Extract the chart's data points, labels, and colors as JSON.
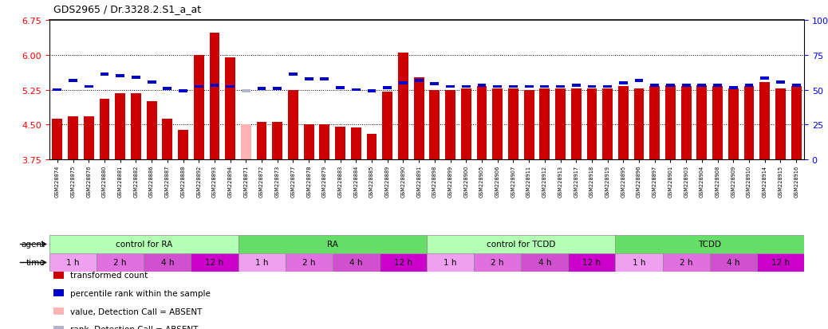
{
  "title": "GDS2965 / Dr.3328.2.S1_a_at",
  "gsm_ids": [
    "GSM228874",
    "GSM228875",
    "GSM228876",
    "GSM228880",
    "GSM228881",
    "GSM228882",
    "GSM228886",
    "GSM228887",
    "GSM228888",
    "GSM228892",
    "GSM228893",
    "GSM228894",
    "GSM228871",
    "GSM228872",
    "GSM228873",
    "GSM228877",
    "GSM228878",
    "GSM228879",
    "GSM228883",
    "GSM228884",
    "GSM228885",
    "GSM228889",
    "GSM228890",
    "GSM228891",
    "GSM228898",
    "GSM228899",
    "GSM228900",
    "GSM228905",
    "GSM228906",
    "GSM228907",
    "GSM228911",
    "GSM228912",
    "GSM228913",
    "GSM228917",
    "GSM228918",
    "GSM228919",
    "GSM228895",
    "GSM228896",
    "GSM228897",
    "GSM228901",
    "GSM228903",
    "GSM228904",
    "GSM228908",
    "GSM228909",
    "GSM228910",
    "GSM228914",
    "GSM228915",
    "GSM228916"
  ],
  "bar_values": [
    4.62,
    4.68,
    4.68,
    5.05,
    5.18,
    5.18,
    5.0,
    4.62,
    4.38,
    6.0,
    6.48,
    5.95,
    4.5,
    4.55,
    4.55,
    5.25,
    4.5,
    4.5,
    4.45,
    4.43,
    4.3,
    5.2,
    6.05,
    5.52,
    5.25,
    5.25,
    5.28,
    5.32,
    5.28,
    5.28,
    5.25,
    5.28,
    5.28,
    5.28,
    5.28,
    5.28,
    5.32,
    5.28,
    5.32,
    5.35,
    5.32,
    5.35,
    5.32,
    5.28,
    5.32,
    5.42,
    5.28,
    5.32
  ],
  "rank_values": [
    5.25,
    5.45,
    5.32,
    5.58,
    5.55,
    5.52,
    5.42,
    5.28,
    5.22,
    5.32,
    5.35,
    5.32,
    5.22,
    5.28,
    5.28,
    5.58,
    5.48,
    5.48,
    5.3,
    5.25,
    5.22,
    5.3,
    5.4,
    5.45,
    5.38,
    5.32,
    5.32,
    5.35,
    5.32,
    5.32,
    5.32,
    5.32,
    5.32,
    5.35,
    5.32,
    5.32,
    5.4,
    5.45,
    5.35,
    5.35,
    5.35,
    5.35,
    5.35,
    5.3,
    5.35,
    5.5,
    5.42,
    5.35
  ],
  "absent_bar_indices": [
    12
  ],
  "absent_rank_indices": [
    12
  ],
  "bar_color_normal": "#cc0000",
  "bar_color_absent": "#ffb3b3",
  "rank_color_normal": "#0000cc",
  "rank_color_absent": "#b3b3cc",
  "ylim_left": [
    3.75,
    6.75
  ],
  "ylim_right": [
    0,
    100
  ],
  "yticks_left": [
    3.75,
    4.5,
    5.25,
    6.0,
    6.75
  ],
  "yticks_right": [
    0,
    25,
    50,
    75,
    100
  ],
  "hlines": [
    4.5,
    5.25,
    6.0
  ],
  "agent_groups": [
    {
      "label": "control for RA",
      "start": 0,
      "end": 11,
      "color": "#b3ffb3"
    },
    {
      "label": "RA",
      "start": 12,
      "end": 23,
      "color": "#66dd66"
    },
    {
      "label": "control for TCDD",
      "start": 24,
      "end": 35,
      "color": "#b3ffb3"
    },
    {
      "label": "TCDD",
      "start": 36,
      "end": 47,
      "color": "#66dd66"
    }
  ],
  "time_groups": [
    {
      "label": "1 h",
      "start": 0,
      "end": 2,
      "color": "#f0a0f0"
    },
    {
      "label": "2 h",
      "start": 3,
      "end": 5,
      "color": "#e070e0"
    },
    {
      "label": "4 h",
      "start": 6,
      "end": 8,
      "color": "#d050d0"
    },
    {
      "label": "12 h",
      "start": 9,
      "end": 11,
      "color": "#cc00cc"
    },
    {
      "label": "1 h",
      "start": 12,
      "end": 14,
      "color": "#f0a0f0"
    },
    {
      "label": "2 h",
      "start": 15,
      "end": 17,
      "color": "#e070e0"
    },
    {
      "label": "4 h",
      "start": 18,
      "end": 20,
      "color": "#d050d0"
    },
    {
      "label": "12 h",
      "start": 21,
      "end": 23,
      "color": "#cc00cc"
    },
    {
      "label": "1 h",
      "start": 24,
      "end": 26,
      "color": "#f0a0f0"
    },
    {
      "label": "2 h",
      "start": 27,
      "end": 29,
      "color": "#e070e0"
    },
    {
      "label": "4 h",
      "start": 30,
      "end": 32,
      "color": "#d050d0"
    },
    {
      "label": "12 h",
      "start": 33,
      "end": 35,
      "color": "#cc00cc"
    },
    {
      "label": "1 h",
      "start": 36,
      "end": 38,
      "color": "#f0a0f0"
    },
    {
      "label": "2 h",
      "start": 39,
      "end": 41,
      "color": "#e070e0"
    },
    {
      "label": "4 h",
      "start": 42,
      "end": 44,
      "color": "#d050d0"
    },
    {
      "label": "12 h",
      "start": 45,
      "end": 47,
      "color": "#cc00cc"
    }
  ],
  "legend_items": [
    {
      "label": "transformed count",
      "color": "#cc0000"
    },
    {
      "label": "percentile rank within the sample",
      "color": "#0000cc"
    },
    {
      "label": "value, Detection Call = ABSENT",
      "color": "#ffb3b3"
    },
    {
      "label": "rank, Detection Call = ABSENT",
      "color": "#b3b3cc"
    }
  ],
  "fig_width": 10.38,
  "fig_height": 4.14,
  "dpi": 100
}
